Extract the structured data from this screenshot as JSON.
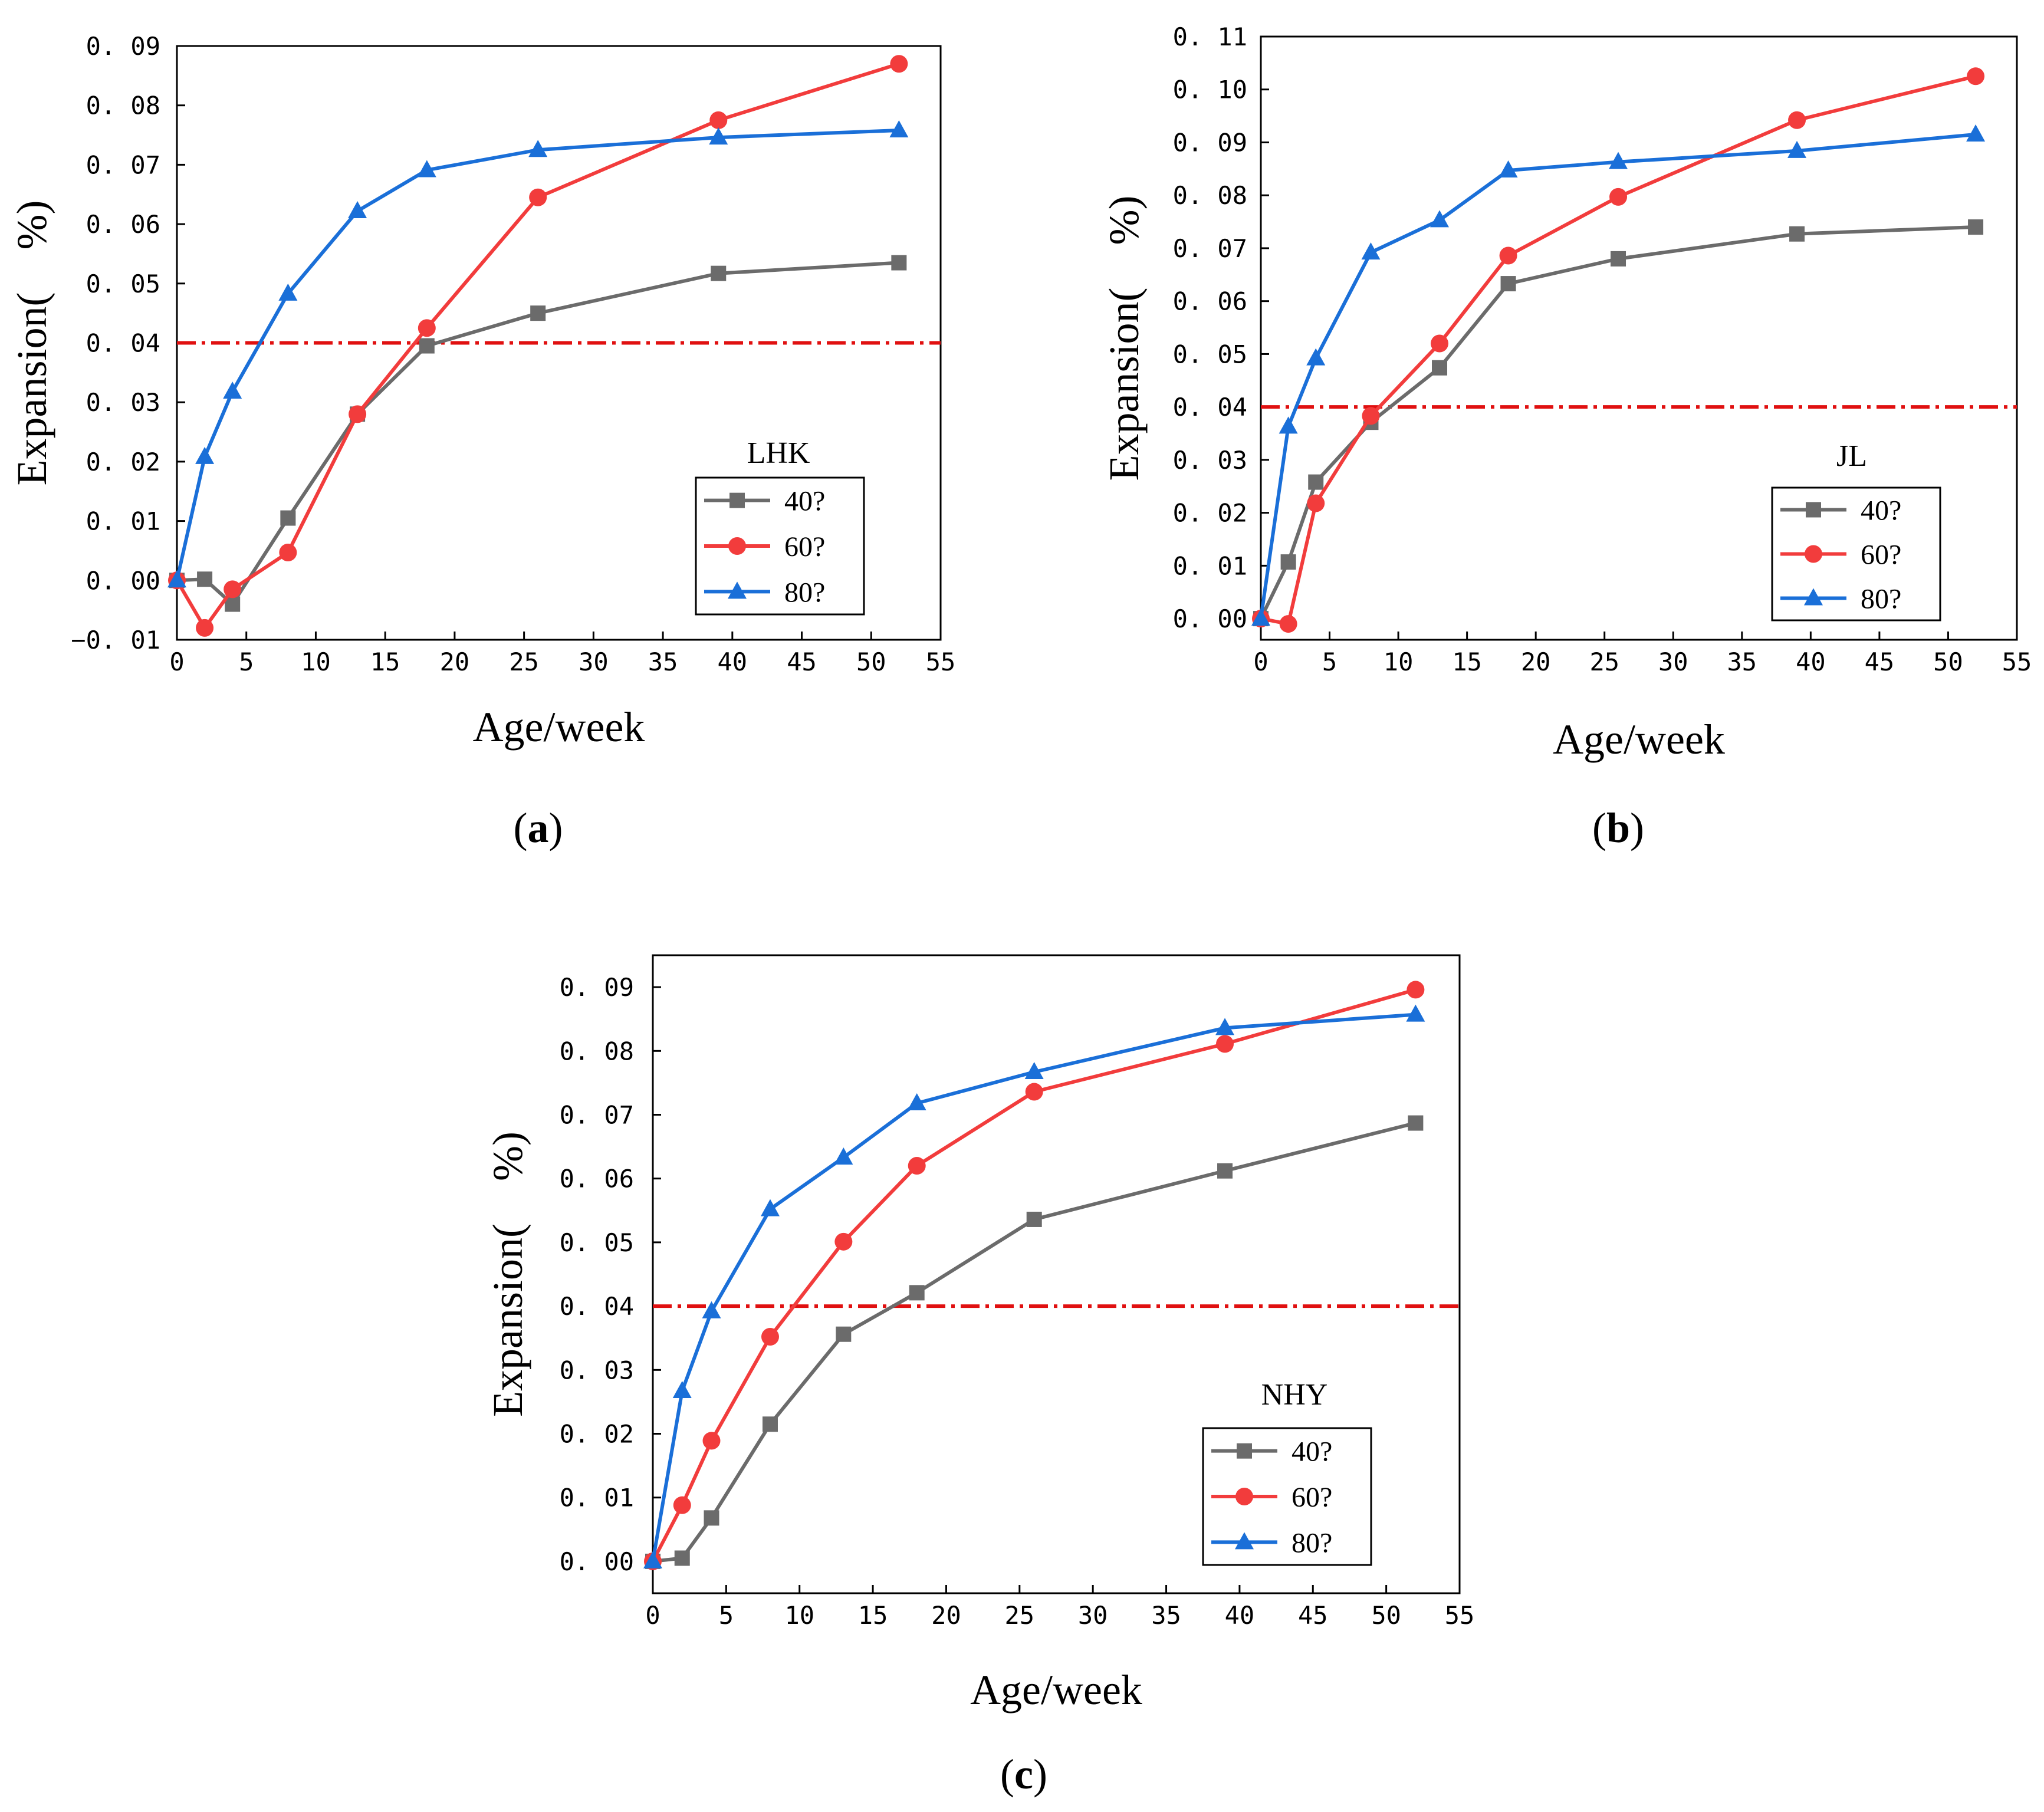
{
  "colors": {
    "series_40": "#6b6b6b",
    "series_60": "#f23c3c",
    "series_80": "#1a6fd8",
    "threshold": "#e01010",
    "axis": "#000000"
  },
  "chart_data": [
    {
      "type": "line",
      "panel_label": "(a)",
      "panel_letter": "a",
      "xlabel": "Age/week",
      "ylabel": "Expansion(　%)",
      "xlim": [
        0,
        55
      ],
      "ylim": [
        -0.01,
        0.09
      ],
      "xticks": [
        0,
        5,
        10,
        15,
        20,
        25,
        30,
        35,
        40,
        45,
        50,
        55
      ],
      "yticks": [
        -0.01,
        0.0,
        0.01,
        0.02,
        0.03,
        0.04,
        0.05,
        0.06,
        0.07,
        0.08,
        0.09
      ],
      "ytick_labels": [
        "−0. 01",
        "0. 00",
        "0. 01",
        "0. 02",
        "0. 03",
        "0. 04",
        "0. 05",
        "0. 06",
        "0. 07",
        "0. 08",
        "0. 09"
      ],
      "x": [
        0,
        2,
        4,
        8,
        13,
        18,
        26,
        39,
        52
      ],
      "series": [
        {
          "name": "40?",
          "marker": "square",
          "values": [
            0.0,
            0.0002,
            -0.004,
            0.0105,
            0.028,
            0.0395,
            0.045,
            0.0517,
            0.0535
          ]
        },
        {
          "name": "60?",
          "marker": "circle",
          "values": [
            0.0,
            -0.008,
            -0.0015,
            0.0047,
            0.028,
            0.0425,
            0.0645,
            0.0775,
            0.087
          ]
        },
        {
          "name": "80?",
          "marker": "triangle",
          "values": [
            0.0,
            0.0208,
            0.0318,
            0.0483,
            0.0622,
            0.0691,
            0.0725,
            0.0746,
            0.0758
          ]
        }
      ],
      "threshold": 0.04,
      "legend_title": "LHK",
      "legend_position": "lower-right",
      "grid": false
    },
    {
      "type": "line",
      "panel_label": "(b)",
      "panel_letter": "b",
      "xlabel": "Age/week",
      "ylabel": "Expansion(　%)",
      "xlim": [
        0,
        55
      ],
      "ylim": [
        -0.004,
        0.11
      ],
      "xticks": [
        0,
        5,
        10,
        15,
        20,
        25,
        30,
        35,
        40,
        45,
        50,
        55
      ],
      "yticks": [
        0.0,
        0.01,
        0.02,
        0.03,
        0.04,
        0.05,
        0.06,
        0.07,
        0.08,
        0.09,
        0.1,
        0.11
      ],
      "ytick_labels": [
        "0. 00",
        "0. 01",
        "0. 02",
        "0. 03",
        "0. 04",
        "0. 05",
        "0. 06",
        "0. 07",
        "0. 08",
        "0. 09",
        "0. 10",
        "0. 11"
      ],
      "x": [
        0,
        2,
        4,
        8,
        13,
        18,
        26,
        39,
        52
      ],
      "series": [
        {
          "name": "40?",
          "marker": "square",
          "values": [
            0.0,
            0.0107,
            0.0258,
            0.0371,
            0.0474,
            0.0633,
            0.068,
            0.0727,
            0.074
          ]
        },
        {
          "name": "60?",
          "marker": "circle",
          "values": [
            0.0,
            -0.001,
            0.0218,
            0.0383,
            0.052,
            0.0686,
            0.0797,
            0.0942,
            0.1025
          ]
        },
        {
          "name": "80?",
          "marker": "triangle",
          "values": [
            0.0,
            0.0363,
            0.0492,
            0.0692,
            0.0753,
            0.0847,
            0.0863,
            0.0884,
            0.0915
          ]
        }
      ],
      "threshold": 0.04,
      "legend_title": "JL",
      "legend_position": "lower-right",
      "grid": false
    },
    {
      "type": "line",
      "panel_label": "(c)",
      "panel_letter": "c",
      "xlabel": "Age/week",
      "ylabel": "Expansion(　%)",
      "xlim": [
        0,
        55
      ],
      "ylim": [
        -0.005,
        0.095
      ],
      "xticks": [
        0,
        5,
        10,
        15,
        20,
        25,
        30,
        35,
        40,
        45,
        50,
        55
      ],
      "yticks": [
        0.0,
        0.01,
        0.02,
        0.03,
        0.04,
        0.05,
        0.06,
        0.07,
        0.08,
        0.09
      ],
      "ytick_labels": [
        "0. 00",
        "0. 01",
        "0. 02",
        "0. 03",
        "0. 04",
        "0. 05",
        "0. 06",
        "0. 07",
        "0. 08",
        "0. 09"
      ],
      "x": [
        0,
        2,
        4,
        8,
        13,
        18,
        26,
        39,
        52
      ],
      "series": [
        {
          "name": "40?",
          "marker": "square",
          "values": [
            0.0,
            0.0005,
            0.0068,
            0.0215,
            0.0356,
            0.0421,
            0.0536,
            0.0612,
            0.0687
          ]
        },
        {
          "name": "60?",
          "marker": "circle",
          "values": [
            0.0,
            0.0088,
            0.0189,
            0.0352,
            0.0501,
            0.062,
            0.0736,
            0.0811,
            0.0896
          ]
        },
        {
          "name": "80?",
          "marker": "triangle",
          "values": [
            0.0,
            0.0267,
            0.0392,
            0.0552,
            0.0633,
            0.0718,
            0.0767,
            0.0836,
            0.0857
          ]
        }
      ],
      "threshold": 0.04,
      "legend_title": "NHY",
      "legend_position": "lower-right",
      "grid": false
    }
  ]
}
